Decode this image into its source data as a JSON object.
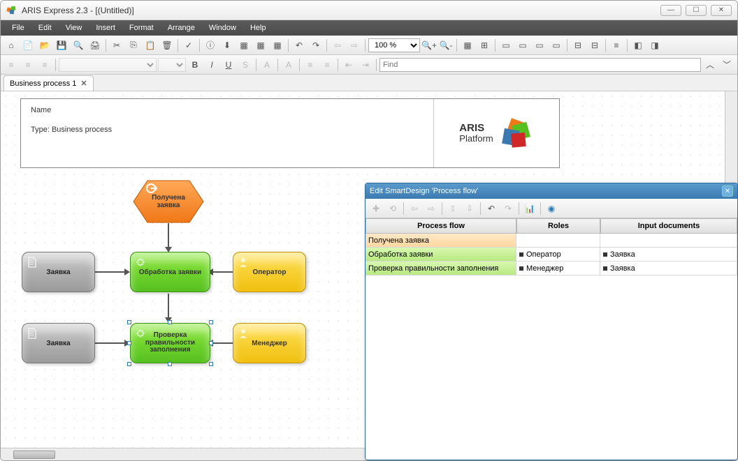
{
  "window": {
    "title": "ARIS Express 2.3 - [(Untitled)]"
  },
  "winbuttons": {
    "min": "—",
    "max": "☐",
    "close": "✕"
  },
  "menu": [
    "File",
    "Edit",
    "View",
    "Insert",
    "Format",
    "Arrange",
    "Window",
    "Help"
  ],
  "zoom": "100 %",
  "find_placeholder": "Find",
  "tab": {
    "label": "Business process 1",
    "close": "✕"
  },
  "header": {
    "name_label": "Name",
    "type_label": "Type: Business process",
    "logo_top": "ARIS",
    "logo_bottom": "Platform"
  },
  "diagram": {
    "event1": "Получена\nзаявка",
    "doc1": "Заявка",
    "doc2": "Заявка",
    "func1": "Обработка заявки",
    "func2": "Проверка\nправильности\nзаполнения",
    "role1": "Оператор",
    "role2": "Менеджер",
    "colors": {
      "event": "#f07818",
      "doc": "#9a9a9a",
      "func": "#56c020",
      "role": "#f0c010"
    }
  },
  "panel": {
    "title": "Edit SmartDesign 'Process flow'",
    "headers": {
      "c1": "Process flow",
      "c2": "Roles",
      "c3": "Input documents"
    },
    "rows": [
      {
        "flow": "Получена заявка",
        "role": "",
        "doc": "",
        "cls": "row-orange"
      },
      {
        "flow": "Обработка заявки",
        "role": "Оператор",
        "doc": "Заявка",
        "cls": "row-green"
      },
      {
        "flow": "Проверка правильности заполнения",
        "role": "Менеджер",
        "doc": "Заявка",
        "cls": "row-green"
      }
    ]
  }
}
